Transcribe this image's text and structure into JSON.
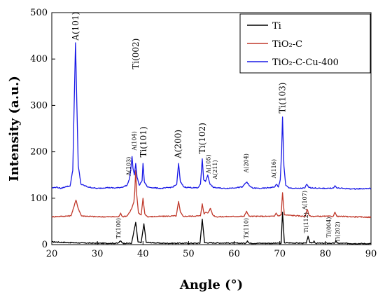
{
  "chart_data": {
    "type": "line",
    "xlabel": "Angle (°)",
    "ylabel": "Intensity (a.u.)",
    "xlim": [
      20,
      90
    ],
    "ylim": [
      0,
      500
    ],
    "xticks": [
      20,
      30,
      40,
      50,
      60,
      70,
      80,
      90
    ],
    "yticks": [
      0,
      100,
      200,
      300,
      400,
      500
    ],
    "grid": false,
    "legend_position": "top-right",
    "series": [
      {
        "name": "Ti",
        "color": "#000000",
        "baseline": 0,
        "points": [
          [
            20,
            6
          ],
          [
            25,
            4
          ],
          [
            30,
            3
          ],
          [
            34.5,
            3
          ],
          [
            35.1,
            8
          ],
          [
            35.6,
            3
          ],
          [
            37.5,
            3
          ],
          [
            38.4,
            48
          ],
          [
            38.9,
            6
          ],
          [
            39.6,
            4
          ],
          [
            40.2,
            45
          ],
          [
            40.7,
            5
          ],
          [
            44,
            3
          ],
          [
            50,
            3
          ],
          [
            52.5,
            3
          ],
          [
            53.0,
            55
          ],
          [
            53.5,
            4
          ],
          [
            62.5,
            3
          ],
          [
            62.9,
            8
          ],
          [
            63.3,
            3
          ],
          [
            70.3,
            3
          ],
          [
            70.6,
            70
          ],
          [
            71.0,
            4
          ],
          [
            75.8,
            3
          ],
          [
            76.2,
            18
          ],
          [
            76.6,
            4
          ],
          [
            77.3,
            4
          ],
          [
            77.5,
            8
          ],
          [
            77.8,
            3
          ],
          [
            82.0,
            3
          ],
          [
            82.3,
            8
          ],
          [
            82.6,
            3
          ],
          [
            90,
            2
          ]
        ]
      },
      {
        "name": "TiO₂-C",
        "color": "#c0392b",
        "baseline": 60,
        "points": [
          [
            20,
            60
          ],
          [
            24.2,
            62
          ],
          [
            24.8,
            80
          ],
          [
            25.3,
            96
          ],
          [
            25.8,
            78
          ],
          [
            26.5,
            62
          ],
          [
            30,
            60
          ],
          [
            34.7,
            60
          ],
          [
            35.1,
            68
          ],
          [
            35.5,
            60
          ],
          [
            36.5,
            62
          ],
          [
            37.2,
            72
          ],
          [
            37.6,
            80
          ],
          [
            38.0,
            92
          ],
          [
            38.2,
            115
          ],
          [
            38.4,
            160
          ],
          [
            38.6,
            110
          ],
          [
            39.0,
            68
          ],
          [
            39.6,
            64
          ],
          [
            40.0,
            100
          ],
          [
            40.4,
            66
          ],
          [
            41,
            60
          ],
          [
            47.3,
            62
          ],
          [
            47.8,
            93
          ],
          [
            48.2,
            70
          ],
          [
            48.8,
            61
          ],
          [
            52.6,
            62
          ],
          [
            53.0,
            88
          ],
          [
            53.4,
            66
          ],
          [
            53.8,
            70
          ],
          [
            54.2,
            68
          ],
          [
            54.8,
            78
          ],
          [
            55.3,
            64
          ],
          [
            56,
            60
          ],
          [
            62.2,
            61
          ],
          [
            62.7,
            72
          ],
          [
            63.3,
            61
          ],
          [
            68.8,
            61
          ],
          [
            69.2,
            68
          ],
          [
            69.6,
            62
          ],
          [
            70.3,
            64
          ],
          [
            70.6,
            112
          ],
          [
            71.0,
            64
          ],
          [
            75.6,
            61
          ],
          [
            76.0,
            76
          ],
          [
            76.5,
            62
          ],
          [
            77.0,
            61
          ],
          [
            81.7,
            61
          ],
          [
            82.1,
            70
          ],
          [
            82.5,
            61
          ],
          [
            90,
            59
          ]
        ]
      },
      {
        "name": "TiO₂-C-Cu-400",
        "color": "#1a1ae6",
        "baseline": 122,
        "points": [
          [
            20,
            122
          ],
          [
            21,
            124
          ],
          [
            22,
            121
          ],
          [
            23,
            125
          ],
          [
            24,
            126
          ],
          [
            24.6,
            160
          ],
          [
            24.9,
            300
          ],
          [
            25.2,
            435
          ],
          [
            25.5,
            300
          ],
          [
            25.8,
            170
          ],
          [
            26.4,
            130
          ],
          [
            28,
            124
          ],
          [
            30,
            121
          ],
          [
            32,
            123
          ],
          [
            34,
            122
          ],
          [
            35.5,
            124
          ],
          [
            36.5,
            128
          ],
          [
            37.0,
            140
          ],
          [
            37.3,
            160
          ],
          [
            37.6,
            190
          ],
          [
            37.8,
            165
          ],
          [
            38.1,
            150
          ],
          [
            38.4,
            175
          ],
          [
            38.7,
            145
          ],
          [
            39.2,
            128
          ],
          [
            39.8,
            138
          ],
          [
            40.0,
            175
          ],
          [
            40.3,
            135
          ],
          [
            41,
            124
          ],
          [
            44,
            121
          ],
          [
            46.5,
            124
          ],
          [
            47.4,
            130
          ],
          [
            47.8,
            175
          ],
          [
            48.2,
            135
          ],
          [
            49,
            124
          ],
          [
            52,
            122
          ],
          [
            52.6,
            130
          ],
          [
            53.0,
            185
          ],
          [
            53.3,
            140
          ],
          [
            53.7,
            136
          ],
          [
            54.2,
            150
          ],
          [
            54.7,
            130
          ],
          [
            55.5,
            123
          ],
          [
            58,
            121
          ],
          [
            61.8,
            124
          ],
          [
            62.4,
            132
          ],
          [
            62.8,
            135
          ],
          [
            63.3,
            127
          ],
          [
            64,
            122
          ],
          [
            66,
            121
          ],
          [
            68.8,
            124
          ],
          [
            69.3,
            130
          ],
          [
            69.7,
            124
          ],
          [
            70.1,
            140
          ],
          [
            70.4,
            200
          ],
          [
            70.6,
            275
          ],
          [
            70.9,
            170
          ],
          [
            71.3,
            128
          ],
          [
            72,
            122
          ],
          [
            74,
            121
          ],
          [
            75.5,
            122
          ],
          [
            75.9,
            130
          ],
          [
            76.4,
            123
          ],
          [
            79,
            121
          ],
          [
            81.8,
            122
          ],
          [
            82.1,
            127
          ],
          [
            82.5,
            122
          ],
          [
            86,
            120
          ],
          [
            90,
            121
          ]
        ]
      }
    ],
    "annotations": [
      {
        "text": "A(101)",
        "x": 25.2,
        "y": 437,
        "size": "big"
      },
      {
        "text": "Ti(002)",
        "x": 38.4,
        "y": 375,
        "size": "big"
      },
      {
        "text": "A(103)",
        "x": 36.8,
        "y": 145,
        "size": "small"
      },
      {
        "text": "A(104)",
        "x": 38.0,
        "y": 200,
        "size": "small"
      },
      {
        "text": "Ti(101)",
        "x": 40.1,
        "y": 185,
        "size": "big"
      },
      {
        "text": "A(200)",
        "x": 47.7,
        "y": 183,
        "size": "big"
      },
      {
        "text": "Ti(102)",
        "x": 53.0,
        "y": 193,
        "size": "big"
      },
      {
        "text": "A(105)",
        "x": 54.3,
        "y": 150,
        "size": "small"
      },
      {
        "text": "A(211)",
        "x": 55.8,
        "y": 138,
        "size": "small"
      },
      {
        "text": "A(204)",
        "x": 62.6,
        "y": 152,
        "size": "small"
      },
      {
        "text": "A(116)",
        "x": 68.7,
        "y": 140,
        "size": "small"
      },
      {
        "text": "Ti(103)",
        "x": 70.6,
        "y": 280,
        "size": "big"
      },
      {
        "text": "A(107)",
        "x": 75.4,
        "y": 72,
        "size": "small"
      },
      {
        "text": "Ti(100)",
        "x": 34.6,
        "y": 10,
        "size": "small"
      },
      {
        "text": "Ti(110)",
        "x": 62.6,
        "y": 10,
        "size": "small"
      },
      {
        "text": "Ti(112)",
        "x": 75.7,
        "y": 22,
        "size": "small"
      },
      {
        "text": "Ti(004)",
        "x": 80.7,
        "y": 12,
        "size": "small"
      },
      {
        "text": "Ti(202)",
        "x": 82.6,
        "y": 2,
        "size": "small"
      }
    ]
  }
}
